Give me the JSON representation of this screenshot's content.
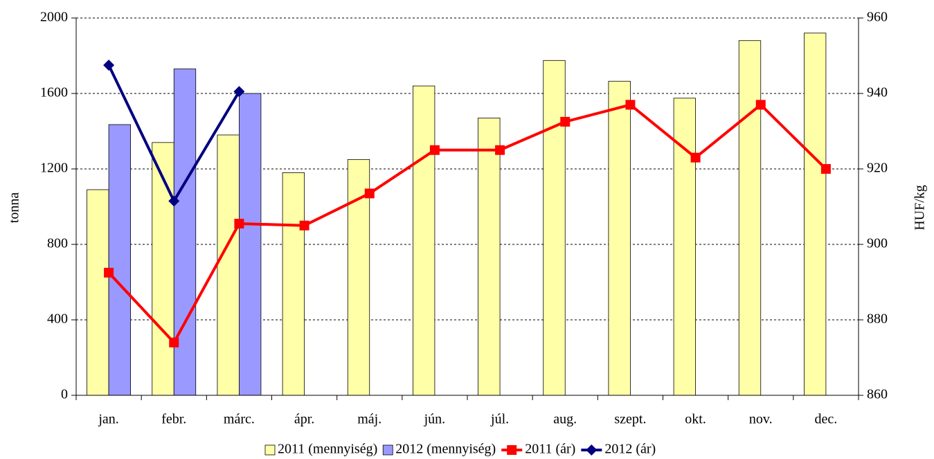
{
  "chart_data": {
    "type": "bar",
    "categories": [
      "jan.",
      "febr.",
      "márc.",
      "ápr.",
      "máj.",
      "jún.",
      "júl.",
      "aug.",
      "szept.",
      "okt.",
      "nov.",
      "dec."
    ],
    "y_label": "tonna",
    "y2_label": "HUF/kg",
    "ylim": [
      0,
      2000
    ],
    "yticks": [
      0,
      400,
      800,
      1200,
      1600,
      2000
    ],
    "y2lim": [
      860,
      960
    ],
    "y2ticks": [
      860,
      880,
      900,
      920,
      940,
      960
    ],
    "grid": true,
    "legend": "bottom",
    "series": [
      {
        "name": "2011 (mennyiség)",
        "type": "bar",
        "color": "#ffffa8",
        "values": [
          1090,
          1340,
          1380,
          1180,
          1250,
          1640,
          1470,
          1775,
          1665,
          1575,
          1880,
          1920
        ]
      },
      {
        "name": "2012 (mennyiség)",
        "type": "bar",
        "color": "#9999ff",
        "values": [
          1435,
          1730,
          1600,
          null,
          null,
          null,
          null,
          null,
          null,
          null,
          null,
          null
        ]
      },
      {
        "name": "2011 (ár)",
        "type": "line",
        "axis": "y2",
        "marker": "square",
        "color": "#ff0000",
        "values": [
          892.5,
          874,
          905.5,
          905,
          913.5,
          925,
          925,
          932.5,
          937,
          923,
          937,
          920
        ]
      },
      {
        "name": "2012 (ár)",
        "type": "line",
        "axis": "y2",
        "marker": "diamond",
        "color": "#000080",
        "values": [
          947.5,
          911.5,
          940.5,
          null,
          null,
          null,
          null,
          null,
          null,
          null,
          null,
          null
        ]
      }
    ]
  }
}
